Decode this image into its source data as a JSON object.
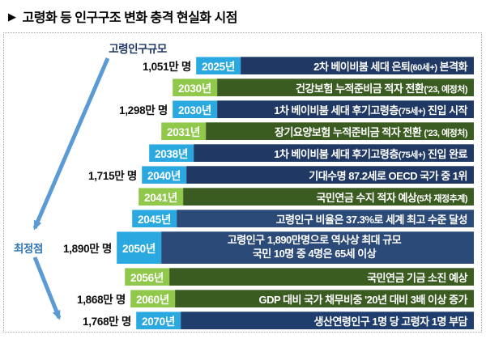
{
  "title": {
    "marker": "▶",
    "text": "고령화 등 인구구조 변화 충격 현실화 시점"
  },
  "panel": {
    "axis_label": "고령인구규모",
    "peak_label": "최정점",
    "arrow_color": "#5b9bd5",
    "colors": {
      "year_blue": "#2aa9e1",
      "year_green": "#8fc84a",
      "bar_navy": "#1f3864",
      "bar_navy_light": "#2b4a77",
      "bar_navy_deep": "#1f3e6d",
      "bar_green": "#3a5c21"
    },
    "rows": [
      {
        "population": "1,051만 명",
        "year": "2025년",
        "year_color": "#2aa9e1",
        "bar_color": "#1f3864",
        "lines": [
          "2차 베이비붐 세대 은퇴(60세+) 본격화"
        ],
        "indent": 237,
        "tall": false
      },
      {
        "population": "",
        "year": "2030년",
        "year_color": "#8fc84a",
        "bar_color": "#3a5c21",
        "lines": [
          "건강보험 누적준비금 적자 전환('23, 예정처)"
        ],
        "indent": 208,
        "tall": false
      },
      {
        "population": "1,298만 명",
        "year": "2030년",
        "year_color": "#2aa9e1",
        "bar_color": "#1f3864",
        "lines": [
          "1차 베이비붐 세대 후기고령층(75세+) 진입 시작"
        ],
        "indent": 208,
        "tall": false
      },
      {
        "population": "",
        "year": "2031년",
        "year_color": "#8fc84a",
        "bar_color": "#3a5c21",
        "lines": [
          "장기요양보험 누적준비금 적자 전환 ('23, 예정처)"
        ],
        "indent": 194,
        "tall": false
      },
      {
        "population": "",
        "year": "2038년",
        "year_color": "#2aa9e1",
        "bar_color": "#1f3864",
        "lines": [
          "1차 베이비붐 세대 후기고령층(75세+) 진입 완료"
        ],
        "indent": 179,
        "tall": false
      },
      {
        "population": "1,715만 명",
        "year": "2040년",
        "year_color": "#2aa9e1",
        "bar_color": "#1f3864",
        "lines": [
          "기대수명 87.2세로 OECD 국가 중 1위"
        ],
        "indent": 170,
        "tall": false
      },
      {
        "population": "",
        "year": "2041년",
        "year_color": "#8fc84a",
        "bar_color": "#3a5c21",
        "lines": [
          "국민연금 수지 적자 예상(5차 재정추계)"
        ],
        "indent": 166,
        "tall": false
      },
      {
        "population": "",
        "year": "2045년",
        "year_color": "#2aa9e1",
        "bar_color": "#2b4a77",
        "lines": [
          "고령인구 비율은 37.3%로 세계 최고 수준 달성"
        ],
        "indent": 158,
        "tall": false
      },
      {
        "population": "1,890만 명",
        "year": "2050년",
        "year_color": "#2aa9e1",
        "bar_color": "#2b4a77",
        "lines": [
          "고령인구 1,890만명으로 역사상 최대 규모",
          "국민 10명 중 4명은 65세 이상"
        ],
        "indent": 139,
        "tall": true
      },
      {
        "population": "",
        "year": "2056년",
        "year_color": "#8fc84a",
        "bar_color": "#3a5c21",
        "lines": [
          "국민연금 기금 소진 예상"
        ],
        "indent": 149,
        "tall": false
      },
      {
        "population": "1,868만 명",
        "year": "2060년",
        "year_color": "#8fc84a",
        "bar_color": "#3a5c21",
        "lines": [
          "GDP 대비 국가 채무비중 '20년 대비 3배 이상 증가"
        ],
        "indent": 156,
        "tall": false
      },
      {
        "population": "1,768만 명",
        "year": "2070년",
        "year_color": "#2aa9e1",
        "bar_color": "#1f3e6d",
        "lines": [
          "생산연령인구 1명 당 고령자 1명 부담"
        ],
        "indent": 163,
        "tall": false
      }
    ]
  }
}
